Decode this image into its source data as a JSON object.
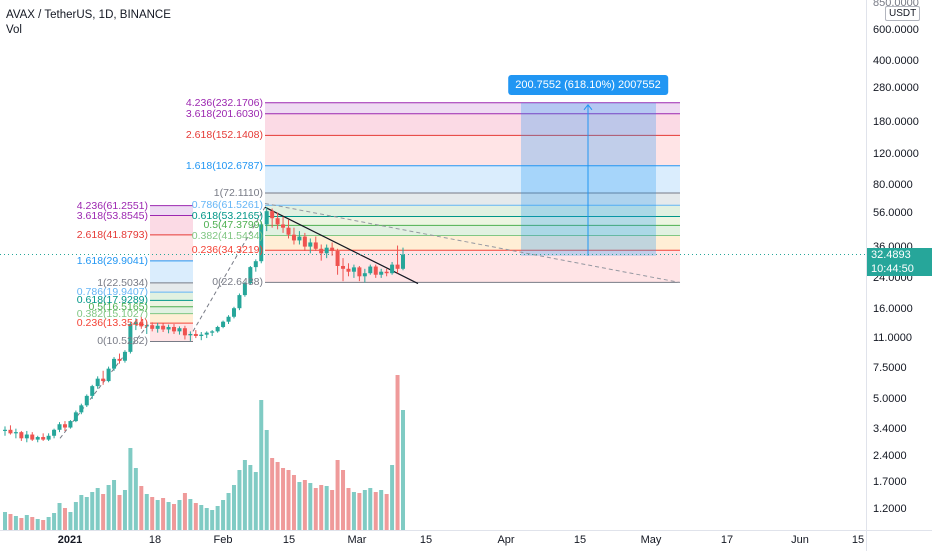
{
  "header": {
    "symbol_title": "AVAX / TetherUS, 1D, BINANCE",
    "indicator": "Vol"
  },
  "price_axis": {
    "unit": "USDT",
    "top_partial": "850.0000",
    "ticks": [
      "600.0000",
      "400.0000",
      "280.0000",
      "180.0000",
      "120.0000",
      "80.0000",
      "56.0000",
      "36.0000",
      "24.0000",
      "16.0000",
      "11.0000",
      "7.5000",
      "5.0000",
      "3.4000",
      "2.4000",
      "1.7000",
      "1.2000"
    ],
    "tick_values": [
      600,
      400,
      280,
      180,
      120,
      80,
      56,
      36,
      24,
      16,
      11,
      7.5,
      5,
      3.4,
      2.4,
      1.7,
      1.2
    ],
    "last_price": "32.4893",
    "countdown": "10:44:50",
    "last_price_color": "#26a69a"
  },
  "time_axis": {
    "labels": [
      {
        "text": "2021",
        "bold": true
      },
      {
        "text": "18",
        "bold": false
      },
      {
        "text": "Feb",
        "bold": false
      },
      {
        "text": "15",
        "bold": false
      },
      {
        "text": "Mar",
        "bold": false
      },
      {
        "text": "15",
        "bold": false
      },
      {
        "text": "Apr",
        "bold": false
      },
      {
        "text": "15",
        "bold": false
      },
      {
        "text": "May",
        "bold": false
      },
      {
        "text": "17",
        "bold": false
      },
      {
        "text": "Jun",
        "bold": false
      },
      {
        "text": "15",
        "bold": false
      }
    ]
  },
  "fib_small": {
    "levels": [
      {
        "label": "4.236(61.2551)",
        "price": 61.2551,
        "color": "#9c27b0"
      },
      {
        "label": "3.618(53.8545)",
        "price": 53.8545,
        "color": "#9c27b0"
      },
      {
        "label": "2.618(41.8793)",
        "price": 41.8793,
        "color": "#e53935"
      },
      {
        "label": "1.618(29.9041)",
        "price": 29.9041,
        "color": "#2196f3"
      },
      {
        "label": "1(22.5034)",
        "price": 22.5034,
        "color": "#787b86"
      },
      {
        "label": "0.786(19.9407)",
        "price": 19.9407,
        "color": "#64b5f6"
      },
      {
        "label": "0.618(17.9289)",
        "price": 17.9289,
        "color": "#009688"
      },
      {
        "label": "0.5(16.5165)",
        "price": 16.5165,
        "color": "#4caf50"
      },
      {
        "label": "0.382(15.1027)",
        "price": 15.1027,
        "color": "#81c784"
      },
      {
        "label": "0.236(13.3544)",
        "price": 13.3544,
        "color": "#f44336"
      },
      {
        "label": "0(10.5282)",
        "price": 10.5282,
        "color": "#787b86"
      }
    ]
  },
  "fib_large": {
    "levels": [
      {
        "label": "4.236(232.1706)",
        "price": 232.1706,
        "color": "#9c27b0"
      },
      {
        "label": "3.618(201.6030)",
        "price": 201.603,
        "color": "#9c27b0"
      },
      {
        "label": "2.618(152.1408)",
        "price": 152.1408,
        "color": "#e53935"
      },
      {
        "label": "1.618(102.6787)",
        "price": 102.6787,
        "color": "#2196f3"
      },
      {
        "label": "1(72.1110)",
        "price": 72.111,
        "color": "#787b86"
      },
      {
        "label": "0.786(61.5261)",
        "price": 61.5261,
        "color": "#64b5f6"
      },
      {
        "label": "0.618(53.2165)",
        "price": 53.2165,
        "color": "#009688"
      },
      {
        "label": "0.5(47.3799)",
        "price": 47.3799,
        "color": "#4caf50"
      },
      {
        "label": "0.382(41.5434)",
        "price": 41.5434,
        "color": "#81c784"
      },
      {
        "label": "0.236(34.3219)",
        "price": 34.3219,
        "color": "#f44336"
      },
      {
        "label": "0(22.6488)",
        "price": 22.6488,
        "color": "#787b86"
      }
    ]
  },
  "measure": {
    "label": "200.7552 (618.10%) 2007552"
  },
  "colors": {
    "up": "#26a69a",
    "down": "#ef5350",
    "vol_up": "#80cbc4",
    "vol_down": "#ef9a9a",
    "measure_blue": "#2196f3"
  },
  "candles": [
    {
      "o": 3.3,
      "h": 3.5,
      "l": 3.1,
      "c": 3.35
    },
    {
      "o": 3.35,
      "h": 3.55,
      "l": 3.15,
      "c": 3.2
    },
    {
      "o": 3.2,
      "h": 3.4,
      "l": 3.0,
      "c": 3.25
    },
    {
      "o": 3.25,
      "h": 3.3,
      "l": 2.9,
      "c": 3.0
    },
    {
      "o": 3.0,
      "h": 3.3,
      "l": 2.85,
      "c": 3.15
    },
    {
      "o": 3.15,
      "h": 3.25,
      "l": 2.9,
      "c": 2.95
    },
    {
      "o": 2.95,
      "h": 3.1,
      "l": 2.85,
      "c": 3.05
    },
    {
      "o": 3.05,
      "h": 3.2,
      "l": 2.9,
      "c": 2.95
    },
    {
      "o": 2.95,
      "h": 3.2,
      "l": 2.9,
      "c": 3.1
    },
    {
      "o": 3.1,
      "h": 3.4,
      "l": 3.0,
      "c": 3.35
    },
    {
      "o": 3.35,
      "h": 3.7,
      "l": 3.25,
      "c": 3.6
    },
    {
      "o": 3.6,
      "h": 3.75,
      "l": 3.3,
      "c": 3.45
    },
    {
      "o": 3.45,
      "h": 3.8,
      "l": 3.4,
      "c": 3.75
    },
    {
      "o": 3.75,
      "h": 4.3,
      "l": 3.7,
      "c": 4.2
    },
    {
      "o": 4.2,
      "h": 4.7,
      "l": 4.1,
      "c": 4.6
    },
    {
      "o": 4.6,
      "h": 5.3,
      "l": 4.5,
      "c": 5.2
    },
    {
      "o": 5.2,
      "h": 6.0,
      "l": 5.0,
      "c": 5.9
    },
    {
      "o": 5.9,
      "h": 6.7,
      "l": 5.7,
      "c": 6.5
    },
    {
      "o": 6.5,
      "h": 7.2,
      "l": 6.0,
      "c": 6.3
    },
    {
      "o": 6.3,
      "h": 7.6,
      "l": 6.2,
      "c": 7.4
    },
    {
      "o": 7.4,
      "h": 8.6,
      "l": 7.2,
      "c": 8.4
    },
    {
      "o": 8.4,
      "h": 9.0,
      "l": 7.9,
      "c": 8.2
    },
    {
      "o": 8.2,
      "h": 9.4,
      "l": 8.0,
      "c": 9.2
    },
    {
      "o": 9.2,
      "h": 13.5,
      "l": 9.0,
      "c": 13.2
    },
    {
      "o": 13.2,
      "h": 14.2,
      "l": 12.2,
      "c": 13.5
    },
    {
      "o": 13.5,
      "h": 14.5,
      "l": 12.4,
      "c": 12.8
    },
    {
      "o": 12.8,
      "h": 13.6,
      "l": 11.6,
      "c": 13.0
    },
    {
      "o": 13.0,
      "h": 13.5,
      "l": 12.0,
      "c": 12.4
    },
    {
      "o": 12.4,
      "h": 13.4,
      "l": 11.8,
      "c": 12.9
    },
    {
      "o": 12.9,
      "h": 13.3,
      "l": 11.9,
      "c": 12.3
    },
    {
      "o": 12.3,
      "h": 13.1,
      "l": 11.7,
      "c": 12.7
    },
    {
      "o": 12.7,
      "h": 13.2,
      "l": 11.6,
      "c": 12.0
    },
    {
      "o": 12.0,
      "h": 12.8,
      "l": 11.5,
      "c": 12.5
    },
    {
      "o": 12.5,
      "h": 12.9,
      "l": 10.8,
      "c": 11.4
    },
    {
      "o": 11.4,
      "h": 12.0,
      "l": 10.6,
      "c": 11.6
    },
    {
      "o": 11.6,
      "h": 12.2,
      "l": 11.0,
      "c": 11.3
    },
    {
      "o": 11.3,
      "h": 11.9,
      "l": 10.7,
      "c": 11.5
    },
    {
      "o": 11.5,
      "h": 12.0,
      "l": 11.0,
      "c": 11.8
    },
    {
      "o": 11.8,
      "h": 12.2,
      "l": 11.3,
      "c": 12.0
    },
    {
      "o": 12.0,
      "h": 12.9,
      "l": 11.8,
      "c": 12.7
    },
    {
      "o": 12.7,
      "h": 13.8,
      "l": 12.5,
      "c": 13.6
    },
    {
      "o": 13.6,
      "h": 14.8,
      "l": 13.2,
      "c": 14.5
    },
    {
      "o": 14.5,
      "h": 16.5,
      "l": 14.2,
      "c": 16.2
    },
    {
      "o": 16.2,
      "h": 19.6,
      "l": 15.8,
      "c": 19.2
    },
    {
      "o": 19.2,
      "h": 22.8,
      "l": 18.8,
      "c": 22.4
    },
    {
      "o": 22.4,
      "h": 28.0,
      "l": 22.0,
      "c": 27.6
    },
    {
      "o": 27.6,
      "h": 30.5,
      "l": 26.0,
      "c": 29.8
    },
    {
      "o": 29.8,
      "h": 50.0,
      "l": 29.0,
      "c": 48.0
    },
    {
      "o": 48.0,
      "h": 60.0,
      "l": 44.0,
      "c": 57.0
    },
    {
      "o": 57.0,
      "h": 59.0,
      "l": 46.0,
      "c": 52.0
    },
    {
      "o": 52.0,
      "h": 56.0,
      "l": 45.0,
      "c": 48.0
    },
    {
      "o": 48.0,
      "h": 53.0,
      "l": 43.0,
      "c": 46.0
    },
    {
      "o": 46.0,
      "h": 51.0,
      "l": 40.0,
      "c": 42.0
    },
    {
      "o": 42.0,
      "h": 46.0,
      "l": 37.0,
      "c": 39.0
    },
    {
      "o": 39.0,
      "h": 44.0,
      "l": 37.0,
      "c": 41.0
    },
    {
      "o": 41.0,
      "h": 43.0,
      "l": 34.0,
      "c": 36.0
    },
    {
      "o": 36.0,
      "h": 40.0,
      "l": 33.0,
      "c": 38.0
    },
    {
      "o": 38.0,
      "h": 41.0,
      "l": 34.0,
      "c": 35.0
    },
    {
      "o": 35.0,
      "h": 37.0,
      "l": 30.0,
      "c": 33.0
    },
    {
      "o": 33.0,
      "h": 37.0,
      "l": 31.0,
      "c": 35.5
    },
    {
      "o": 35.5,
      "h": 38.0,
      "l": 32.0,
      "c": 34.0
    },
    {
      "o": 34.0,
      "h": 35.0,
      "l": 25.0,
      "c": 28.0
    },
    {
      "o": 28.0,
      "h": 31.0,
      "l": 23.0,
      "c": 27.0
    },
    {
      "o": 27.0,
      "h": 29.0,
      "l": 24.5,
      "c": 26.0
    },
    {
      "o": 26.0,
      "h": 28.5,
      "l": 24.0,
      "c": 27.5
    },
    {
      "o": 27.5,
      "h": 28.0,
      "l": 23.0,
      "c": 24.5
    },
    {
      "o": 24.5,
      "h": 27.0,
      "l": 22.6,
      "c": 25.5
    },
    {
      "o": 25.5,
      "h": 28.5,
      "l": 25.0,
      "c": 27.8
    },
    {
      "o": 27.8,
      "h": 28.5,
      "l": 24.0,
      "c": 25.0
    },
    {
      "o": 25.0,
      "h": 27.0,
      "l": 24.0,
      "c": 26.0
    },
    {
      "o": 26.0,
      "h": 27.0,
      "l": 24.5,
      "c": 25.5
    },
    {
      "o": 25.5,
      "h": 29.5,
      "l": 25.0,
      "c": 28.5
    },
    {
      "o": 28.5,
      "h": 36.5,
      "l": 25.5,
      "c": 27.0
    },
    {
      "o": 27.0,
      "h": 35.5,
      "l": 26.5,
      "c": 32.49
    }
  ],
  "volumes": [
    0.18,
    0.16,
    0.14,
    0.12,
    0.15,
    0.13,
    0.11,
    0.1,
    0.13,
    0.17,
    0.27,
    0.22,
    0.18,
    0.28,
    0.35,
    0.33,
    0.38,
    0.42,
    0.36,
    0.45,
    0.5,
    0.35,
    0.4,
    0.82,
    0.62,
    0.44,
    0.36,
    0.33,
    0.3,
    0.32,
    0.28,
    0.26,
    0.3,
    0.37,
    0.31,
    0.27,
    0.25,
    0.22,
    0.2,
    0.24,
    0.3,
    0.37,
    0.45,
    0.6,
    0.7,
    0.65,
    0.58,
    1.3,
    1.0,
    0.72,
    0.68,
    0.62,
    0.6,
    0.55,
    0.48,
    0.5,
    0.47,
    0.42,
    0.45,
    0.44,
    0.4,
    0.7,
    0.6,
    0.42,
    0.38,
    0.37,
    0.4,
    0.42,
    0.38,
    0.4,
    0.36,
    0.65,
    1.55,
    1.2
  ]
}
